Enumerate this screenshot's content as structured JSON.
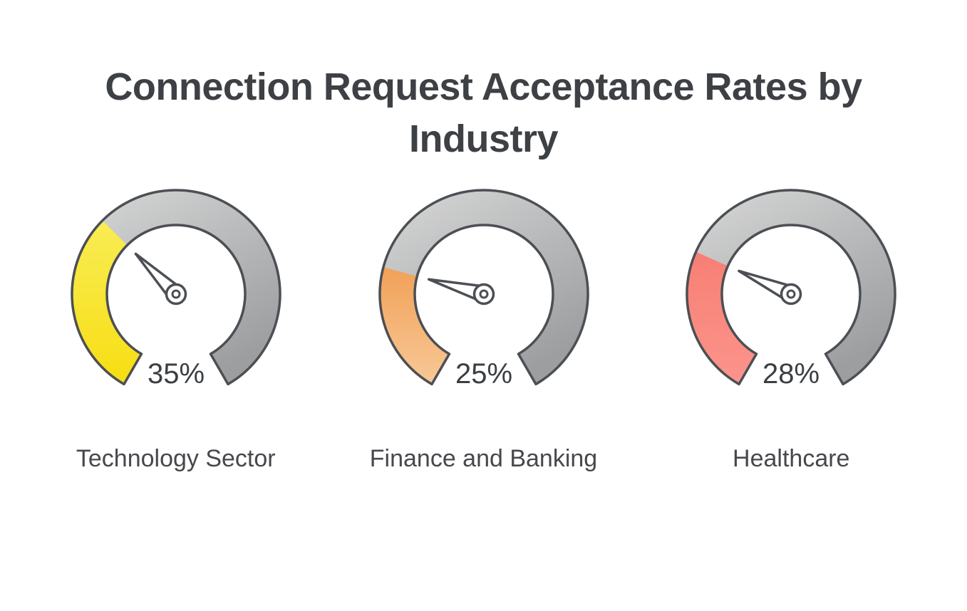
{
  "chart_data": {
    "type": "gauge",
    "title": "Connection Request Acceptance Rates by Industry",
    "min": 0,
    "max": 100,
    "track_color_light": "#D8D8D8",
    "track_color_dark": "#9C9EA0",
    "outline_color": "#4C4F54",
    "value_text_color": "#3B3E42",
    "gauges": [
      {
        "label": "Technology Sector",
        "value": 35,
        "value_label": "35%",
        "color": "#F7E017",
        "color_top": "#F9EC55",
        "color_bottom": "#F7DE12"
      },
      {
        "label": "Finance and Banking",
        "value": 25,
        "value_label": "25%",
        "color": "#F2A45C",
        "color_top": "#F1A158",
        "color_bottom": "#F8C897"
      },
      {
        "label": "Healthcare",
        "value": 28,
        "value_label": "28%",
        "color": "#F87F76",
        "color_top": "#F77F74",
        "color_bottom": "#FB948C"
      }
    ]
  }
}
